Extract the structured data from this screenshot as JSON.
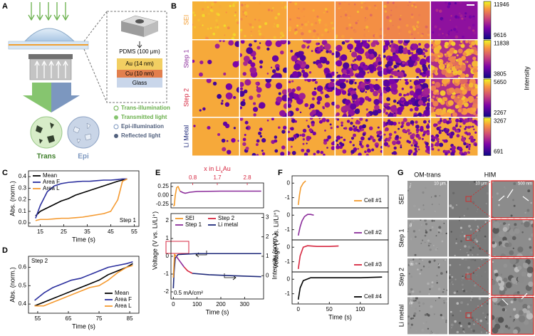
{
  "panel_labels": [
    "A",
    "B",
    "C",
    "D",
    "E",
    "F",
    "G"
  ],
  "panel_a": {
    "layers": [
      "PDMS (100 μm)",
      "Au (14 nm)",
      "Cu (10 nm)",
      "Glass"
    ],
    "legend": [
      "Trans-illumination",
      "Transmitted light",
      "Epi-illumination",
      "Reflected light"
    ],
    "views": [
      "Trans",
      "Epi"
    ]
  },
  "panel_b": {
    "rows": [
      "SEI",
      "Step 1",
      "Step 2",
      "Li Metal"
    ],
    "colorbars": [
      {
        "max": 11946,
        "min": 9616
      },
      {
        "max": 11838,
        "min": 3805
      },
      {
        "max": 5650,
        "min": 2267
      },
      {
        "max": 3267,
        "min": 691
      }
    ],
    "colorbar_label": "Intensity"
  },
  "panel_g": {
    "columns": [
      "OM-trans",
      "HIM"
    ],
    "rows": [
      "SEI",
      "Step 1",
      "Step 2",
      "Li metal"
    ],
    "scale_bars": [
      "10 μm",
      "10 μm",
      "500 nm"
    ],
    "numerals": [
      "i",
      "ii",
      "iii",
      "iv"
    ]
  },
  "chart_data": [
    {
      "type": "line",
      "xlabel": "Time (s)",
      "ylabel": "Abs. (norm.)",
      "x": [
        13,
        15,
        18,
        21,
        24,
        27,
        30,
        33,
        36,
        39,
        42,
        45,
        48,
        50,
        52
      ],
      "xlim": [
        10,
        57
      ],
      "xticks": [
        15,
        25,
        35,
        45,
        55
      ],
      "ylim": [
        -0.03,
        0.45
      ],
      "yticks": [
        {
          "value": 0,
          "label": "0.0"
        },
        0.1,
        0.2,
        0.3,
        0.4
      ],
      "series": [
        {
          "name": "Mean",
          "color": "#000000",
          "values": [
            0.06,
            0.1,
            0.13,
            0.16,
            0.19,
            0.21,
            0.24,
            0.26,
            0.28,
            0.3,
            0.32,
            0.34,
            0.36,
            0.37,
            0.38
          ]
        },
        {
          "name": "Area F",
          "color": "#2b2f9e",
          "values": [
            0.04,
            0.15,
            0.27,
            0.32,
            0.34,
            0.35,
            0.355,
            0.36,
            0.36,
            0.365,
            0.37,
            0.37,
            0.375,
            0.38,
            0.38
          ]
        },
        {
          "name": "Area L",
          "color": "#f59a30",
          "values": [
            0.02,
            0.03,
            0.03,
            0.035,
            0.04,
            0.04,
            0.045,
            0.05,
            0.06,
            0.07,
            0.08,
            0.1,
            0.2,
            0.36,
            0.38
          ]
        }
      ],
      "legend": "upper left",
      "annotation": "Step 1",
      "annotation_position": "lower right"
    },
    {
      "type": "line",
      "xlabel": "Time (s)",
      "ylabel": "Abs. (norm.)",
      "x": [
        54,
        57,
        60,
        63,
        66,
        69,
        72,
        75,
        78,
        81,
        84,
        86
      ],
      "xlim": [
        52,
        88
      ],
      "xticks": [
        55,
        65,
        75,
        85
      ],
      "ylim": [
        0.35,
        0.66
      ],
      "yticks": [
        0.4,
        0.5,
        0.6
      ],
      "series": [
        {
          "name": "Mean",
          "color": "#000000",
          "values": [
            0.39,
            0.41,
            0.43,
            0.45,
            0.47,
            0.49,
            0.51,
            0.53,
            0.56,
            0.58,
            0.6,
            0.62
          ]
        },
        {
          "name": "Area F",
          "color": "#2b2f9e",
          "values": [
            0.42,
            0.46,
            0.49,
            0.51,
            0.53,
            0.54,
            0.56,
            0.58,
            0.6,
            0.61,
            0.62,
            0.63
          ]
        },
        {
          "name": "Area L",
          "color": "#f59a30",
          "values": [
            0.39,
            0.39,
            0.41,
            0.43,
            0.45,
            0.47,
            0.49,
            0.5,
            0.53,
            0.57,
            0.6,
            0.61
          ]
        }
      ],
      "legend": "lower right",
      "annotation": "Step 2",
      "annotation_position": "upper left"
    },
    {
      "type": "line",
      "x2label": [
        "x in Li",
        "x",
        "Au"
      ],
      "x2lim": [
        0,
        3.4
      ],
      "x2ticks": [
        0.8,
        1.7,
        2.8
      ],
      "x2color": "#d6263f",
      "xlim": [
        -10,
        380
      ],
      "ylim": [
        -0.35,
        0.35
      ],
      "yticks": [
        0.25,
        {
          "value": 0,
          "label": "0.00"
        },
        -0.25
      ],
      "series": [
        {
          "color": "#f39a2b",
          "x": [
            0,
            4,
            8,
            14,
            20,
            28
          ],
          "values": [
            -0.3,
            -0.28,
            0.0,
            0.22,
            0.25,
            0.12
          ]
        },
        {
          "color": "#8b2c9a",
          "x": [
            28,
            40,
            50,
            70,
            100,
            200,
            300,
            370
          ],
          "values": [
            0.12,
            0.08,
            0.06,
            0.09,
            0.11,
            0.12,
            0.12,
            0.12
          ]
        }
      ]
    },
    {
      "type": "line",
      "xlabel": "Time (s)",
      "ylabel": "Voltage (V  vs. Li/Li⁺)",
      "y2label": "Intensity (norm.)",
      "xlim": [
        -10,
        380
      ],
      "xticks": [
        0,
        100,
        200,
        300
      ],
      "ylim": [
        -2.4,
        2.4
      ],
      "yticks": [
        -2,
        -1,
        0,
        1,
        2
      ],
      "y2lim": [
        -1.2,
        3.2
      ],
      "y2ticks": [
        0,
        1,
        2,
        3
      ],
      "series": [
        {
          "color": "#1f2a7a",
          "x": [
            0,
            3,
            8,
            20,
            100,
            200,
            300,
            370
          ],
          "values": [
            -1.8,
            -0.9,
            -0.1,
            0.1,
            0.15,
            0.15,
            0.15,
            0.15
          ]
        },
        {
          "name": "SEI",
          "color": "#f39a2b",
          "axis": "y2",
          "x": [
            0,
            5,
            12
          ],
          "values": [
            -0.1,
            1.1,
            1.0
          ]
        },
        {
          "name": "Step 1",
          "color": "#8b2c9a",
          "axis": "y2",
          "x": [
            12,
            30,
            45
          ],
          "values": [
            1.0,
            0.7,
            0.45
          ]
        },
        {
          "name": "Step 2",
          "color": "#d6263f",
          "axis": "y2",
          "x": [
            45,
            60,
            80
          ],
          "values": [
            0.45,
            0.25,
            0.12
          ]
        },
        {
          "name": "Li metal",
          "color": "#1f2a7a",
          "axis": "y2",
          "x": [
            80,
            150,
            250,
            370
          ],
          "values": [
            0.12,
            0.05,
            0.0,
            -0.05
          ]
        }
      ],
      "legend": "upper left",
      "legend_columns": 2,
      "annotation": "0.5 mA/cm²",
      "annotation_position": "lower left"
    },
    {
      "type": "line",
      "ylabel": "Voltage (V  vs. Li/Li⁺)",
      "x": [
        0,
        2,
        4,
        8,
        12
      ],
      "xlim": [
        -10,
        145
      ],
      "ylim": [
        -1.7,
        0.5
      ],
      "yticks": [
        0,
        -1
      ],
      "series": [
        {
          "name": "Cell #1",
          "color": "#f39a2b",
          "values": [
            -1.5,
            -0.8,
            -0.3,
            0,
            0.15
          ]
        }
      ],
      "legend": "lower right"
    },
    {
      "type": "line",
      "x": [
        0,
        3,
        6,
        10,
        15,
        20,
        25
      ],
      "xlim": [
        -10,
        145
      ],
      "ylim": [
        -1.7,
        0.5
      ],
      "yticks": [
        0,
        -1
      ],
      "series": [
        {
          "name": "Cell #2",
          "color": "#8b2c9a",
          "values": [
            -1.4,
            -0.8,
            -0.4,
            -0.1,
            0.05,
            0.05,
            0.0
          ]
        }
      ],
      "legend": "lower right"
    },
    {
      "type": "line",
      "x": [
        0,
        3,
        8,
        15,
        30,
        50,
        65
      ],
      "xlim": [
        -10,
        145
      ],
      "ylim": [
        -1.7,
        0.5
      ],
      "yticks": [
        0,
        -1
      ],
      "series": [
        {
          "name": "Cell #3",
          "color": "#d6263f",
          "values": [
            -1.5,
            -0.6,
            0.0,
            0.1,
            0.05,
            0.05,
            0.08
          ]
        }
      ],
      "legend": "lower right"
    },
    {
      "type": "line",
      "xlabel": "Time (s)",
      "x": [
        0,
        3,
        8,
        20,
        50,
        100,
        135
      ],
      "xlim": [
        -10,
        145
      ],
      "xticks": [
        0,
        50,
        100
      ],
      "ylim": [
        -1.7,
        0.5
      ],
      "yticks": [
        0,
        -1
      ],
      "series": [
        {
          "name": "Cell #4",
          "color": "#000000",
          "values": [
            -1.4,
            -0.6,
            -0.1,
            0.1,
            0.1,
            0.1,
            0.15
          ]
        }
      ],
      "legend": "lower right"
    }
  ]
}
